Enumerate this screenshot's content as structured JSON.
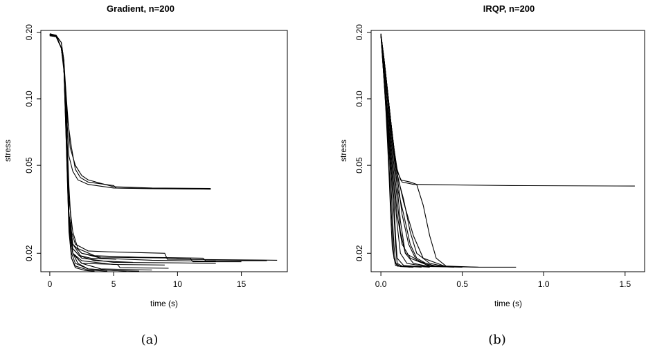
{
  "chart_data": [
    {
      "type": "line",
      "title": "Gradient, n=200",
      "xlabel": "time (s)",
      "ylabel": "stress",
      "panel_label": "(a)",
      "y_scale": "log",
      "xlim": [
        -0.7,
        18.6
      ],
      "ylim": [
        0.0165,
        0.204
      ],
      "x_ticks": [
        0,
        5,
        10,
        15
      ],
      "x_tick_labels": [
        "0",
        "5",
        "10",
        "15"
      ],
      "y_ticks": [
        0.02,
        0.05,
        0.1,
        0.2
      ],
      "y_tick_labels": [
        "0.02",
        "0.05",
        "0.10",
        "0.20"
      ],
      "grid": false,
      "series": [
        {
          "x": [
            0,
            0.5,
            0.9,
            1.1,
            1.3,
            1.6,
            2.0,
            2.5,
            3.0,
            5.0,
            8.0,
            12.6
          ],
          "y": [
            0.196,
            0.194,
            0.18,
            0.15,
            0.1,
            0.06,
            0.05,
            0.045,
            0.043,
            0.04,
            0.0395,
            0.0393
          ]
        },
        {
          "x": [
            0,
            0.5,
            0.9,
            1.1,
            1.3,
            1.5,
            1.8,
            2.2,
            3.0,
            5.0,
            8.0,
            12.6
          ],
          "y": [
            0.193,
            0.192,
            0.18,
            0.15,
            0.09,
            0.055,
            0.047,
            0.043,
            0.041,
            0.0395,
            0.0392,
            0.039
          ]
        },
        {
          "x": [
            0,
            0.5,
            0.9,
            1.2,
            1.4,
            1.7,
            2.0,
            2.4,
            3.0,
            5.0,
            5.2,
            12.6
          ],
          "y": [
            0.195,
            0.193,
            0.17,
            0.12,
            0.08,
            0.06,
            0.048,
            0.044,
            0.042,
            0.0405,
            0.0395,
            0.039
          ]
        },
        {
          "x": [
            0,
            0.5,
            0.9,
            1.1,
            1.3,
            1.5,
            1.7,
            2.0,
            3.0,
            4.5,
            9.0,
            9.2,
            17.8
          ],
          "y": [
            0.197,
            0.194,
            0.17,
            0.14,
            0.08,
            0.04,
            0.025,
            0.022,
            0.0205,
            0.0203,
            0.02,
            0.0188,
            0.0186
          ]
        },
        {
          "x": [
            0,
            0.5,
            0.9,
            1.1,
            1.3,
            1.5,
            1.8,
            2.2,
            3.5,
            7.0,
            12.0,
            12.2,
            17.0
          ],
          "y": [
            0.195,
            0.193,
            0.17,
            0.14,
            0.08,
            0.035,
            0.025,
            0.021,
            0.0195,
            0.0192,
            0.019,
            0.0185,
            0.0185
          ]
        },
        {
          "x": [
            0,
            0.5,
            0.9,
            1.1,
            1.3,
            1.5,
            1.8,
            2.5,
            4.0,
            8.0,
            13.0
          ],
          "y": [
            0.194,
            0.192,
            0.17,
            0.14,
            0.07,
            0.03,
            0.022,
            0.02,
            0.019,
            0.0186,
            0.0184
          ]
        },
        {
          "x": [
            0,
            0.5,
            0.9,
            1.1,
            1.3,
            1.5,
            1.8,
            2.5,
            4.0,
            10.0,
            11.0,
            11.2,
            15.0
          ],
          "y": [
            0.196,
            0.193,
            0.17,
            0.14,
            0.07,
            0.03,
            0.022,
            0.02,
            0.0192,
            0.019,
            0.019,
            0.0183,
            0.0183
          ]
        },
        {
          "x": [
            0,
            0.5,
            0.9,
            1.1,
            1.3,
            1.5,
            1.8,
            2.5,
            5.0,
            10.0,
            13.0
          ],
          "y": [
            0.195,
            0.192,
            0.17,
            0.14,
            0.07,
            0.03,
            0.021,
            0.019,
            0.0182,
            0.0181,
            0.018
          ]
        },
        {
          "x": [
            0,
            0.5,
            0.9,
            1.1,
            1.3,
            1.5,
            1.8,
            2.5,
            5.0,
            9.0
          ],
          "y": [
            0.193,
            0.191,
            0.17,
            0.14,
            0.07,
            0.028,
            0.02,
            0.0185,
            0.0178,
            0.0177
          ]
        },
        {
          "x": [
            0,
            0.5,
            0.9,
            1.1,
            1.3,
            1.5,
            1.8,
            2.5,
            5.3,
            5.5,
            9.3
          ],
          "y": [
            0.196,
            0.192,
            0.17,
            0.14,
            0.07,
            0.028,
            0.02,
            0.018,
            0.0178,
            0.0172,
            0.0171
          ]
        },
        {
          "x": [
            0,
            0.5,
            0.9,
            1.1,
            1.3,
            1.5,
            1.8,
            2.5,
            4.0,
            8.0
          ],
          "y": [
            0.194,
            0.191,
            0.17,
            0.14,
            0.07,
            0.028,
            0.02,
            0.018,
            0.017,
            0.0168
          ]
        },
        {
          "x": [
            0,
            0.5,
            0.9,
            1.1,
            1.3,
            1.5,
            1.8,
            2.2,
            3.0,
            5.0,
            7.0
          ],
          "y": [
            0.197,
            0.193,
            0.17,
            0.14,
            0.07,
            0.028,
            0.02,
            0.018,
            0.017,
            0.0167,
            0.0166
          ]
        },
        {
          "x": [
            0,
            0.5,
            0.9,
            1.1,
            1.3,
            1.5,
            1.7,
            2.0,
            3.0,
            6.0
          ],
          "y": [
            0.195,
            0.192,
            0.17,
            0.14,
            0.065,
            0.027,
            0.02,
            0.018,
            0.017,
            0.0166
          ]
        },
        {
          "x": [
            0,
            0.5,
            0.9,
            1.1,
            1.3,
            1.5,
            1.7,
            2.0,
            3.0,
            4.5
          ],
          "y": [
            0.193,
            0.191,
            0.17,
            0.14,
            0.06,
            0.026,
            0.019,
            0.0175,
            0.0168,
            0.0166
          ]
        },
        {
          "x": [
            0,
            0.5,
            0.9,
            1.1,
            1.3,
            1.5,
            1.7,
            2.0,
            2.8,
            3.5
          ],
          "y": [
            0.196,
            0.192,
            0.17,
            0.14,
            0.06,
            0.025,
            0.019,
            0.0172,
            0.0167,
            0.0166
          ]
        },
        {
          "x": [
            0,
            0.5,
            0.9,
            1.1,
            1.3,
            1.5,
            1.8,
            2.3,
            3.5,
            6.5
          ],
          "y": [
            0.194,
            0.191,
            0.17,
            0.14,
            0.065,
            0.027,
            0.021,
            0.0195,
            0.0185,
            0.0182
          ]
        },
        {
          "x": [
            0,
            0.5,
            0.9,
            1.1,
            1.3,
            1.5,
            1.8,
            2.4,
            3.2,
            5.2
          ],
          "y": [
            0.195,
            0.193,
            0.17,
            0.14,
            0.07,
            0.03,
            0.022,
            0.0195,
            0.019,
            0.0188
          ]
        }
      ]
    },
    {
      "type": "line",
      "title": "IRQP, n=200",
      "xlabel": "time (s)",
      "ylabel": "stress",
      "panel_label": "(b)",
      "y_scale": "log",
      "xlim": [
        -0.06,
        1.62
      ],
      "ylim": [
        0.0165,
        0.204
      ],
      "x_ticks": [
        0,
        0.5,
        1.0,
        1.5
      ],
      "x_tick_labels": [
        "0.0",
        "0.5",
        "1.0",
        "1.5"
      ],
      "y_ticks": [
        0.02,
        0.05,
        0.1,
        0.2
      ],
      "y_tick_labels": [
        "0.02",
        "0.05",
        "0.10",
        "0.20"
      ],
      "grid": false,
      "series": [
        {
          "x": [
            0,
            0.02,
            0.04,
            0.06,
            0.08,
            0.1,
            0.13,
            0.2,
            0.8,
            1.56
          ],
          "y": [
            0.195,
            0.15,
            0.11,
            0.08,
            0.06,
            0.047,
            0.042,
            0.041,
            0.0405,
            0.0403
          ]
        },
        {
          "x": [
            0,
            0.02,
            0.04,
            0.06,
            0.08,
            0.1,
            0.12,
            0.18,
            0.22,
            0.26,
            0.3,
            0.34,
            0.4,
            0.6,
            0.83
          ],
          "y": [
            0.197,
            0.15,
            0.11,
            0.08,
            0.06,
            0.048,
            0.043,
            0.042,
            0.041,
            0.033,
            0.024,
            0.019,
            0.0175,
            0.0173,
            0.0173
          ]
        },
        {
          "x": [
            0,
            0.02,
            0.04,
            0.06,
            0.08,
            0.1,
            0.14,
            0.18,
            0.22,
            0.3,
            0.4,
            0.6
          ],
          "y": [
            0.196,
            0.15,
            0.11,
            0.08,
            0.06,
            0.045,
            0.035,
            0.025,
            0.02,
            0.018,
            0.0174,
            0.0173
          ]
        },
        {
          "x": [
            0,
            0.02,
            0.04,
            0.06,
            0.08,
            0.1,
            0.14,
            0.18,
            0.22,
            0.3,
            0.5
          ],
          "y": [
            0.195,
            0.15,
            0.11,
            0.08,
            0.058,
            0.04,
            0.03,
            0.022,
            0.019,
            0.0176,
            0.0173
          ]
        },
        {
          "x": [
            0,
            0.02,
            0.04,
            0.06,
            0.08,
            0.1,
            0.12,
            0.15,
            0.2,
            0.3,
            0.5
          ],
          "y": [
            0.194,
            0.14,
            0.1,
            0.07,
            0.05,
            0.035,
            0.025,
            0.02,
            0.018,
            0.0174,
            0.0173
          ]
        },
        {
          "x": [
            0,
            0.02,
            0.04,
            0.06,
            0.08,
            0.1,
            0.13,
            0.18,
            0.3,
            0.45
          ],
          "y": [
            0.197,
            0.14,
            0.1,
            0.065,
            0.045,
            0.03,
            0.022,
            0.019,
            0.0175,
            0.0173
          ]
        },
        {
          "x": [
            0,
            0.02,
            0.04,
            0.06,
            0.08,
            0.1,
            0.12,
            0.16,
            0.3
          ],
          "y": [
            0.196,
            0.13,
            0.09,
            0.06,
            0.04,
            0.027,
            0.02,
            0.018,
            0.0173
          ]
        },
        {
          "x": [
            0,
            0.02,
            0.04,
            0.06,
            0.08,
            0.09,
            0.1,
            0.14,
            0.3
          ],
          "y": [
            0.195,
            0.13,
            0.085,
            0.055,
            0.035,
            0.024,
            0.019,
            0.0176,
            0.0173
          ]
        },
        {
          "x": [
            0,
            0.02,
            0.04,
            0.06,
            0.08,
            0.09,
            0.1,
            0.13,
            0.25
          ],
          "y": [
            0.194,
            0.12,
            0.08,
            0.05,
            0.03,
            0.022,
            0.018,
            0.0175,
            0.0173
          ]
        },
        {
          "x": [
            0,
            0.02,
            0.04,
            0.06,
            0.07,
            0.08,
            0.09,
            0.12,
            0.2
          ],
          "y": [
            0.197,
            0.12,
            0.075,
            0.045,
            0.03,
            0.022,
            0.018,
            0.0174,
            0.0173
          ]
        },
        {
          "x": [
            0,
            0.02,
            0.04,
            0.05,
            0.06,
            0.07,
            0.08,
            0.1,
            0.2
          ],
          "y": [
            0.196,
            0.12,
            0.07,
            0.05,
            0.035,
            0.025,
            0.019,
            0.0175,
            0.0173
          ]
        },
        {
          "x": [
            0,
            0.02,
            0.03,
            0.04,
            0.05,
            0.06,
            0.07,
            0.09,
            0.18
          ],
          "y": [
            0.195,
            0.12,
            0.09,
            0.065,
            0.045,
            0.03,
            0.021,
            0.0176,
            0.0173
          ]
        },
        {
          "x": [
            0,
            0.02,
            0.04,
            0.06,
            0.08,
            0.1,
            0.12,
            0.15,
            0.3
          ],
          "y": [
            0.195,
            0.14,
            0.1,
            0.075,
            0.055,
            0.04,
            0.028,
            0.02,
            0.0174
          ]
        },
        {
          "x": [
            0,
            0.02,
            0.04,
            0.06,
            0.08,
            0.1,
            0.13,
            0.17,
            0.22,
            0.35
          ],
          "y": [
            0.196,
            0.15,
            0.11,
            0.08,
            0.06,
            0.045,
            0.03,
            0.022,
            0.0185,
            0.0174
          ]
        },
        {
          "x": [
            0,
            0.02,
            0.04,
            0.06,
            0.08,
            0.1,
            0.14,
            0.2,
            0.26,
            0.4
          ],
          "y": [
            0.195,
            0.15,
            0.11,
            0.08,
            0.06,
            0.046,
            0.034,
            0.024,
            0.019,
            0.0174
          ]
        }
      ]
    }
  ]
}
